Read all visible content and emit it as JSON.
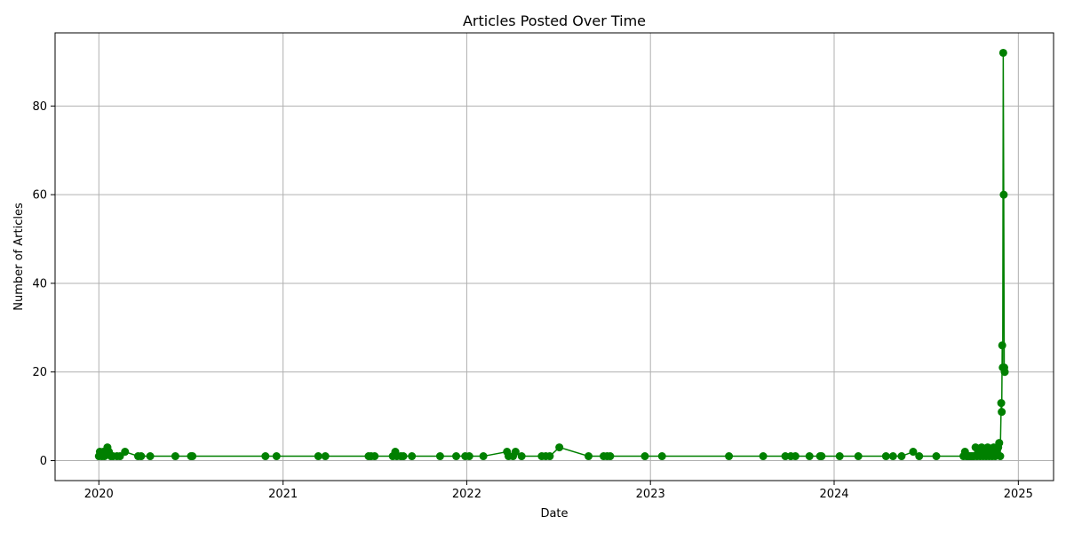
{
  "chart_data": {
    "type": "line",
    "title": "Articles Posted Over Time",
    "xlabel": "Date",
    "ylabel": "Number of Articles",
    "x_ticks": [
      "2020",
      "2021",
      "2022",
      "2023",
      "2024",
      "2025"
    ],
    "y_ticks": [
      0,
      20,
      40,
      60,
      80
    ],
    "xlim": [
      "2019-10-06",
      "2025-03-12"
    ],
    "ylim": [
      -4.5,
      96.5
    ],
    "grid": true,
    "color": "#008000",
    "marker": "circle",
    "series": [
      {
        "points": [
          [
            "2020-01-01",
            1
          ],
          [
            "2020-01-03",
            2
          ],
          [
            "2020-01-07",
            1
          ],
          [
            "2020-01-10",
            2
          ],
          [
            "2020-01-12",
            1
          ],
          [
            "2020-01-15",
            2
          ],
          [
            "2020-01-18",
            3
          ],
          [
            "2020-01-21",
            2
          ],
          [
            "2020-01-25",
            1
          ],
          [
            "2020-01-29",
            1
          ],
          [
            "2020-02-06",
            1
          ],
          [
            "2020-02-12",
            1
          ],
          [
            "2020-02-22",
            2
          ],
          [
            "2020-03-19",
            1
          ],
          [
            "2020-03-25",
            1
          ],
          [
            "2020-04-12",
            1
          ],
          [
            "2020-06-01",
            1
          ],
          [
            "2020-07-02",
            1
          ],
          [
            "2020-07-05",
            1
          ],
          [
            "2020-11-27",
            1
          ],
          [
            "2020-12-19",
            1
          ],
          [
            "2021-03-12",
            1
          ],
          [
            "2021-03-26",
            1
          ],
          [
            "2021-06-20",
            1
          ],
          [
            "2021-06-25",
            1
          ],
          [
            "2021-07-02",
            1
          ],
          [
            "2021-08-07",
            1
          ],
          [
            "2021-08-12",
            2
          ],
          [
            "2021-08-15",
            1
          ],
          [
            "2021-08-23",
            1
          ],
          [
            "2021-08-28",
            1
          ],
          [
            "2021-09-14",
            1
          ],
          [
            "2021-11-09",
            1
          ],
          [
            "2021-12-11",
            1
          ],
          [
            "2021-12-29",
            1
          ],
          [
            "2022-01-06",
            1
          ],
          [
            "2022-02-03",
            1
          ],
          [
            "2022-03-22",
            2
          ],
          [
            "2022-03-25",
            1
          ],
          [
            "2022-04-03",
            1
          ],
          [
            "2022-04-08",
            2
          ],
          [
            "2022-04-20",
            1
          ],
          [
            "2022-05-30",
            1
          ],
          [
            "2022-06-07",
            1
          ],
          [
            "2022-06-15",
            1
          ],
          [
            "2022-07-04",
            3
          ],
          [
            "2022-08-31",
            1
          ],
          [
            "2022-09-30",
            1
          ],
          [
            "2022-10-07",
            1
          ],
          [
            "2022-10-13",
            1
          ],
          [
            "2022-12-21",
            1
          ],
          [
            "2023-01-24",
            1
          ],
          [
            "2023-06-06",
            1
          ],
          [
            "2023-08-13",
            1
          ],
          [
            "2023-09-26",
            1
          ],
          [
            "2023-10-07",
            1
          ],
          [
            "2023-10-16",
            1
          ],
          [
            "2023-11-13",
            1
          ],
          [
            "2023-12-04",
            1
          ],
          [
            "2023-12-07",
            1
          ],
          [
            "2024-01-12",
            1
          ],
          [
            "2024-02-18",
            1
          ],
          [
            "2024-04-13",
            1
          ],
          [
            "2024-04-27",
            1
          ],
          [
            "2024-05-14",
            1
          ],
          [
            "2024-06-06",
            2
          ],
          [
            "2024-06-18",
            1
          ],
          [
            "2024-07-22",
            1
          ],
          [
            "2024-09-14",
            1
          ],
          [
            "2024-09-17",
            2
          ],
          [
            "2024-09-20",
            1
          ],
          [
            "2024-09-23",
            1
          ],
          [
            "2024-09-26",
            1
          ],
          [
            "2024-09-29",
            1
          ],
          [
            "2024-10-02",
            1
          ],
          [
            "2024-10-05",
            1
          ],
          [
            "2024-10-08",
            3
          ],
          [
            "2024-10-11",
            1
          ],
          [
            "2024-10-14",
            2
          ],
          [
            "2024-10-17",
            1
          ],
          [
            "2024-10-20",
            3
          ],
          [
            "2024-10-23",
            1
          ],
          [
            "2024-10-26",
            2
          ],
          [
            "2024-10-29",
            1
          ],
          [
            "2024-11-01",
            3
          ],
          [
            "2024-11-04",
            1
          ],
          [
            "2024-11-07",
            2
          ],
          [
            "2024-11-10",
            1
          ],
          [
            "2024-11-13",
            3
          ],
          [
            "2024-11-16",
            1
          ],
          [
            "2024-11-19",
            2
          ],
          [
            "2024-11-22",
            3
          ],
          [
            "2024-11-24",
            4
          ],
          [
            "2024-11-26",
            1
          ],
          [
            "2024-11-28",
            13
          ],
          [
            "2024-11-29",
            11
          ],
          [
            "2024-11-30",
            26
          ],
          [
            "2024-12-01",
            21
          ],
          [
            "2024-12-02",
            92
          ],
          [
            "2024-12-03",
            60
          ],
          [
            "2024-12-04",
            21
          ],
          [
            "2024-12-05",
            20
          ]
        ]
      }
    ]
  }
}
